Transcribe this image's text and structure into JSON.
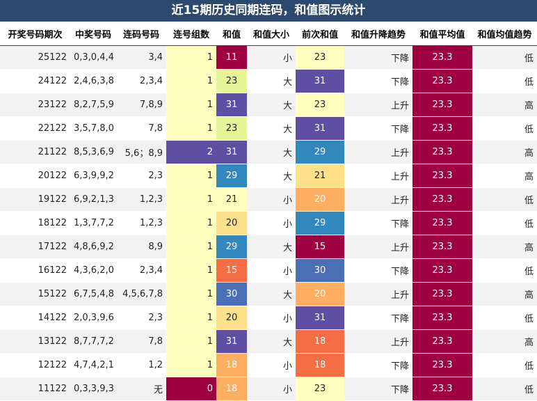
{
  "title": "近15期历史同期连码，和值图示统计",
  "headers": [
    "开奖号码期次",
    "中奖号码",
    "连码号码",
    "连号组数",
    "和值",
    "和值大小",
    "前次和值",
    "和值升降趋势",
    "和值平均值",
    "和值均值趋势"
  ],
  "colors": {
    "c_darkred": "#9e0142",
    "c_orange": "#f46d43",
    "c_lightorange": "#fdae61",
    "c_peach": "#fee08b",
    "c_cream": "#ffffbf",
    "c_lightgreen": "#e6f598",
    "c_teal": "#3288bd",
    "c_blue": "#4a6fb5",
    "c_purple": "#5e4fa2"
  },
  "rows": [
    {
      "issue": "25122",
      "numbers": "0,3,0,4,4",
      "lianma": "3,4",
      "groups": "1",
      "sum": "11",
      "size": "小",
      "prev_sum": "23",
      "trend": "下降",
      "avg": "23.3",
      "avg_trend": "低",
      "groups_color": "#ffffbf",
      "sum_color": "#9e0142",
      "prev_color": "#ffffbf"
    },
    {
      "issue": "24122",
      "numbers": "2,4,6,3,8",
      "lianma": "2,3,4",
      "groups": "1",
      "sum": "23",
      "size": "大",
      "prev_sum": "31",
      "trend": "下降",
      "avg": "23.3",
      "avg_trend": "低",
      "groups_color": "#ffffbf",
      "sum_color": "#e6f598",
      "prev_color": "#5e4fa2"
    },
    {
      "issue": "23122",
      "numbers": "8,2,7,5,9",
      "lianma": "7,8,9",
      "groups": "1",
      "sum": "31",
      "size": "大",
      "prev_sum": "23",
      "trend": "上升",
      "avg": "23.3",
      "avg_trend": "高",
      "groups_color": "#ffffbf",
      "sum_color": "#5e4fa2",
      "prev_color": "#ffffbf"
    },
    {
      "issue": "22122",
      "numbers": "3,5,7,8,0",
      "lianma": "7,8",
      "groups": "1",
      "sum": "23",
      "size": "大",
      "prev_sum": "31",
      "trend": "下降",
      "avg": "23.3",
      "avg_trend": "低",
      "groups_color": "#ffffbf",
      "sum_color": "#e6f598",
      "prev_color": "#5e4fa2"
    },
    {
      "issue": "21122",
      "numbers": "8,5,3,6,9",
      "lianma": "5,6；8,9",
      "groups": "2",
      "sum": "31",
      "size": "大",
      "prev_sum": "29",
      "trend": "上升",
      "avg": "23.3",
      "avg_trend": "高",
      "groups_color": "#5e4fa2",
      "sum_color": "#5e4fa2",
      "prev_color": "#3288bd"
    },
    {
      "issue": "20122",
      "numbers": "6,3,9,9,2",
      "lianma": "2,3",
      "groups": "1",
      "sum": "29",
      "size": "大",
      "prev_sum": "21",
      "trend": "上升",
      "avg": "23.3",
      "avg_trend": "高",
      "groups_color": "#ffffbf",
      "sum_color": "#3288bd",
      "prev_color": "#fee08b"
    },
    {
      "issue": "19122",
      "numbers": "6,9,2,1,3",
      "lianma": "1,2,3",
      "groups": "1",
      "sum": "21",
      "size": "小",
      "prev_sum": "20",
      "trend": "上升",
      "avg": "23.3",
      "avg_trend": "低",
      "groups_color": "#ffffbf",
      "sum_color": "#ffffbf",
      "prev_color": "#fdae61"
    },
    {
      "issue": "18122",
      "numbers": "1,3,7,7,2",
      "lianma": "1,2,3",
      "groups": "1",
      "sum": "20",
      "size": "小",
      "prev_sum": "29",
      "trend": "下降",
      "avg": "23.3",
      "avg_trend": "低",
      "groups_color": "#ffffbf",
      "sum_color": "#fee08b",
      "prev_color": "#3288bd"
    },
    {
      "issue": "17122",
      "numbers": "4,8,6,9,2",
      "lianma": "8,9",
      "groups": "1",
      "sum": "29",
      "size": "大",
      "prev_sum": "15",
      "trend": "上升",
      "avg": "23.3",
      "avg_trend": "高",
      "groups_color": "#ffffbf",
      "sum_color": "#3288bd",
      "prev_color": "#9e0142"
    },
    {
      "issue": "16122",
      "numbers": "4,3,6,2,0",
      "lianma": "2,3,4",
      "groups": "1",
      "sum": "15",
      "size": "小",
      "prev_sum": "30",
      "trend": "下降",
      "avg": "23.3",
      "avg_trend": "低",
      "groups_color": "#ffffbf",
      "sum_color": "#f46d43",
      "prev_color": "#4a6fb5"
    },
    {
      "issue": "15122",
      "numbers": "6,7,5,4,8",
      "lianma": "4,5,6,7,8",
      "groups": "1",
      "sum": "30",
      "size": "大",
      "prev_sum": "20",
      "trend": "上升",
      "avg": "23.3",
      "avg_trend": "高",
      "groups_color": "#ffffbf",
      "sum_color": "#4a6fb5",
      "prev_color": "#fdae61"
    },
    {
      "issue": "14122",
      "numbers": "2,0,3,9,6",
      "lianma": "2,3",
      "groups": "1",
      "sum": "20",
      "size": "小",
      "prev_sum": "31",
      "trend": "下降",
      "avg": "23.3",
      "avg_trend": "低",
      "groups_color": "#ffffbf",
      "sum_color": "#fee08b",
      "prev_color": "#5e4fa2"
    },
    {
      "issue": "13122",
      "numbers": "8,7,7,7,2",
      "lianma": "7,8",
      "groups": "1",
      "sum": "31",
      "size": "大",
      "prev_sum": "18",
      "trend": "上升",
      "avg": "23.3",
      "avg_trend": "高",
      "groups_color": "#ffffbf",
      "sum_color": "#5e4fa2",
      "prev_color": "#f46d43"
    },
    {
      "issue": "12122",
      "numbers": "4,7,4,2,1",
      "lianma": "1,2",
      "groups": "1",
      "sum": "18",
      "size": "小",
      "prev_sum": "18",
      "trend": "下降",
      "avg": "23.3",
      "avg_trend": "低",
      "groups_color": "#ffffbf",
      "sum_color": "#fdae61",
      "prev_color": "#f46d43"
    },
    {
      "issue": "11122",
      "numbers": "0,3,3,9,3",
      "lianma": "无",
      "groups": "0",
      "sum": "18",
      "size": "小",
      "prev_sum": "23",
      "trend": "下降",
      "avg": "23.3",
      "avg_trend": "低",
      "groups_color": "#9e0142",
      "sum_color": "#fdae61",
      "prev_color": "#ffffbf"
    }
  ]
}
